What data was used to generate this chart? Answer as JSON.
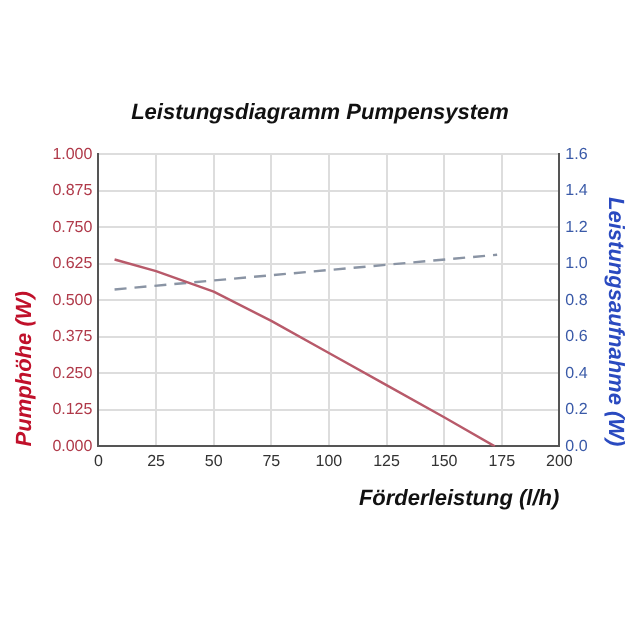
{
  "chart_data": {
    "type": "line",
    "title": "Leistungsdiagramm Pumpensystem",
    "xlabel": "Förderleistung (l/h)",
    "ylabel": "Pumphöhe (W)",
    "y2label": "Leistungsaufnahme (W)",
    "xlim": [
      0,
      200
    ],
    "xticks": [
      0,
      25,
      50,
      75,
      100,
      125,
      150,
      175,
      200
    ],
    "ylim": [
      0,
      1
    ],
    "yticks": [
      {
        "value": 0,
        "label": "0.000"
      },
      {
        "value": 0.125,
        "label": "0.125"
      },
      {
        "value": 0.25,
        "label": "0.250"
      },
      {
        "value": 0.375,
        "label": "0.375"
      },
      {
        "value": 0.5,
        "label": "0.500"
      },
      {
        "value": 0.625,
        "label": "0.625"
      },
      {
        "value": 0.75,
        "label": "0.750"
      },
      {
        "value": 0.875,
        "label": "0.875"
      },
      {
        "value": 1,
        "label": "1.000"
      }
    ],
    "y2lim": [
      0,
      1.6
    ],
    "y2ticks": [
      {
        "value": 0,
        "label": "0.0"
      },
      {
        "value": 0.2,
        "label": "0.2"
      },
      {
        "value": 0.4,
        "label": "0.4"
      },
      {
        "value": 0.6,
        "label": "0.6"
      },
      {
        "value": 0.8,
        "label": "0.8"
      },
      {
        "value": 1,
        "label": "1.0"
      },
      {
        "value": 1.2,
        "label": "1.2"
      },
      {
        "value": 1.4,
        "label": "1.4"
      },
      {
        "value": 1.6,
        "label": "1.6"
      }
    ],
    "grid": true,
    "legend": false,
    "marker": "none",
    "series": [
      {
        "color": "#b85a6a",
        "x": [
          7,
          25,
          50,
          75,
          100,
          125,
          150,
          172
        ],
        "values": [
          0.64,
          0.6,
          0.53,
          0.43,
          0.32,
          0.21,
          0.1,
          0
        ]
      },
      {
        "color": "#8a94a4",
        "axis": "y2",
        "line_style": "dashed",
        "x": [
          7,
          173
        ],
        "values": [
          0.86,
          1.05
        ]
      }
    ]
  }
}
